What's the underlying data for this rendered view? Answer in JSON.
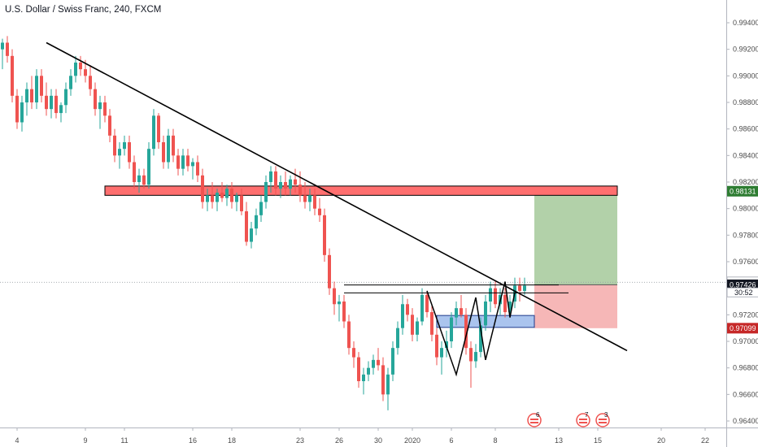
{
  "chart_data": {
    "type": "candlestick",
    "title": "U.S. Dollar / Swiss Franc, 240, FXCM",
    "ylim": [
      0.9635,
      0.9955
    ],
    "y_ticks": [
      0.964,
      0.966,
      0.968,
      0.97,
      0.972,
      0.974,
      0.976,
      0.978,
      0.98,
      0.982,
      0.984,
      0.986,
      0.988,
      0.99,
      0.992,
      0.994
    ],
    "y_tick_labels": [
      "0.96400",
      "0.96600",
      "0.96800",
      "0.97000",
      "0.97200",
      "0.97400",
      "0.97600",
      "0.97800",
      "0.98000",
      "0.98200",
      "0.98400",
      "0.98600",
      "0.98800",
      "0.99000",
      "0.99200",
      "0.99400"
    ],
    "x_ticks": [
      {
        "bar": 3,
        "label": "4"
      },
      {
        "bar": 17,
        "label": "9"
      },
      {
        "bar": 25,
        "label": "11"
      },
      {
        "bar": 39,
        "label": "16"
      },
      {
        "bar": 47,
        "label": "18"
      },
      {
        "bar": 61,
        "label": "23"
      },
      {
        "bar": 69,
        "label": "26"
      },
      {
        "bar": 77,
        "label": "30"
      },
      {
        "bar": 84,
        "label": "2020"
      },
      {
        "bar": 92,
        "label": "6"
      },
      {
        "bar": 101,
        "label": "8"
      },
      {
        "bar": 114,
        "label": "13"
      },
      {
        "bar": 122,
        "label": "15"
      },
      {
        "bar": 135,
        "label": "20"
      },
      {
        "bar": 144,
        "label": "22"
      }
    ],
    "ohlc": [
      [
        0.992,
        0.9928,
        0.9905,
        0.9925
      ],
      [
        0.9925,
        0.993,
        0.991,
        0.9915
      ],
      [
        0.9915,
        0.992,
        0.988,
        0.9885
      ],
      [
        0.9885,
        0.989,
        0.986,
        0.9865
      ],
      [
        0.9865,
        0.9885,
        0.9858,
        0.988
      ],
      [
        0.988,
        0.9895,
        0.987,
        0.989
      ],
      [
        0.989,
        0.99,
        0.9875,
        0.988
      ],
      [
        0.988,
        0.9905,
        0.9875,
        0.99
      ],
      [
        0.99,
        0.9905,
        0.988,
        0.9885
      ],
      [
        0.9885,
        0.9895,
        0.987,
        0.9875
      ],
      [
        0.9875,
        0.989,
        0.9868,
        0.9885
      ],
      [
        0.9885,
        0.989,
        0.9868,
        0.9872
      ],
      [
        0.9872,
        0.988,
        0.9865,
        0.9878
      ],
      [
        0.9878,
        0.9895,
        0.9872,
        0.989
      ],
      [
        0.989,
        0.9905,
        0.9885,
        0.99
      ],
      [
        0.99,
        0.9915,
        0.9895,
        0.991
      ],
      [
        0.991,
        0.9915,
        0.99,
        0.9905
      ],
      [
        0.9905,
        0.9912,
        0.9895,
        0.99
      ],
      [
        0.99,
        0.9908,
        0.9885,
        0.989
      ],
      [
        0.989,
        0.9895,
        0.987,
        0.9875
      ],
      [
        0.9875,
        0.9885,
        0.986,
        0.988
      ],
      [
        0.988,
        0.9885,
        0.9865,
        0.987
      ],
      [
        0.987,
        0.9875,
        0.985,
        0.9855
      ],
      [
        0.9855,
        0.986,
        0.9835,
        0.984
      ],
      [
        0.984,
        0.985,
        0.983,
        0.9845
      ],
      [
        0.9845,
        0.9855,
        0.984,
        0.985
      ],
      [
        0.985,
        0.9855,
        0.983,
        0.9835
      ],
      [
        0.9835,
        0.984,
        0.9815,
        0.982
      ],
      [
        0.982,
        0.983,
        0.9812,
        0.9825
      ],
      [
        0.9825,
        0.983,
        0.9815,
        0.9818
      ],
      [
        0.9818,
        0.985,
        0.9815,
        0.9845
      ],
      [
        0.9845,
        0.9875,
        0.984,
        0.987
      ],
      [
        0.987,
        0.9872,
        0.9845,
        0.985
      ],
      [
        0.985,
        0.9855,
        0.983,
        0.9835
      ],
      [
        0.9835,
        0.986,
        0.983,
        0.9855
      ],
      [
        0.9855,
        0.986,
        0.9835,
        0.984
      ],
      [
        0.984,
        0.9845,
        0.9825,
        0.983
      ],
      [
        0.983,
        0.9845,
        0.9825,
        0.984
      ],
      [
        0.984,
        0.9845,
        0.9828,
        0.9832
      ],
      [
        0.9832,
        0.9838,
        0.9822,
        0.9835
      ],
      [
        0.9835,
        0.984,
        0.982,
        0.9825
      ],
      [
        0.9825,
        0.983,
        0.98,
        0.9805
      ],
      [
        0.9805,
        0.9815,
        0.9798,
        0.981
      ],
      [
        0.981,
        0.982,
        0.98,
        0.9805
      ],
      [
        0.9805,
        0.9815,
        0.9798,
        0.9812
      ],
      [
        0.9812,
        0.982,
        0.9805,
        0.9808
      ],
      [
        0.9808,
        0.9818,
        0.9802,
        0.9815
      ],
      [
        0.9815,
        0.982,
        0.98,
        0.9805
      ],
      [
        0.9805,
        0.9812,
        0.9798,
        0.981
      ],
      [
        0.981,
        0.9815,
        0.9795,
        0.9798
      ],
      [
        0.9798,
        0.9805,
        0.9772,
        0.9775
      ],
      [
        0.9775,
        0.979,
        0.977,
        0.9785
      ],
      [
        0.9785,
        0.98,
        0.978,
        0.9795
      ],
      [
        0.9795,
        0.981,
        0.979,
        0.9805
      ],
      [
        0.9805,
        0.9825,
        0.98,
        0.982
      ],
      [
        0.982,
        0.9832,
        0.9812,
        0.9828
      ],
      [
        0.9828,
        0.9832,
        0.981,
        0.9815
      ],
      [
        0.9815,
        0.9825,
        0.9808,
        0.982
      ],
      [
        0.982,
        0.9828,
        0.981,
        0.9815
      ],
      [
        0.9815,
        0.9825,
        0.981,
        0.9822
      ],
      [
        0.9822,
        0.983,
        0.9812,
        0.9818
      ],
      [
        0.9818,
        0.9828,
        0.9805,
        0.981
      ],
      [
        0.981,
        0.982,
        0.98,
        0.9805
      ],
      [
        0.9805,
        0.9815,
        0.9798,
        0.981
      ],
      [
        0.981,
        0.9815,
        0.9795,
        0.98
      ],
      [
        0.98,
        0.9808,
        0.979,
        0.9795
      ],
      [
        0.9795,
        0.98,
        0.976,
        0.9765
      ],
      [
        0.9765,
        0.977,
        0.9735,
        0.974
      ],
      [
        0.974,
        0.9745,
        0.972,
        0.9728
      ],
      [
        0.9728,
        0.9735,
        0.9715,
        0.973
      ],
      [
        0.973,
        0.9735,
        0.971,
        0.9715
      ],
      [
        0.9715,
        0.972,
        0.969,
        0.9695
      ],
      [
        0.9695,
        0.97,
        0.968,
        0.9688
      ],
      [
        0.9688,
        0.9692,
        0.9665,
        0.967
      ],
      [
        0.967,
        0.968,
        0.966,
        0.9675
      ],
      [
        0.9675,
        0.9685,
        0.967,
        0.968
      ],
      [
        0.968,
        0.969,
        0.9675,
        0.9686
      ],
      [
        0.9686,
        0.9695,
        0.9678,
        0.9682
      ],
      [
        0.9682,
        0.9688,
        0.9655,
        0.966
      ],
      [
        0.966,
        0.968,
        0.9648,
        0.9675
      ],
      [
        0.9675,
        0.97,
        0.967,
        0.9695
      ],
      [
        0.9695,
        0.9715,
        0.969,
        0.971
      ],
      [
        0.971,
        0.9735,
        0.9705,
        0.9728
      ],
      [
        0.9728,
        0.9732,
        0.9715,
        0.972
      ],
      [
        0.972,
        0.9725,
        0.97,
        0.9705
      ],
      [
        0.9705,
        0.9718,
        0.97,
        0.9715
      ],
      [
        0.9715,
        0.974,
        0.9712,
        0.9735
      ],
      [
        0.9735,
        0.9738,
        0.9718,
        0.9722
      ],
      [
        0.9722,
        0.9728,
        0.97,
        0.9705
      ],
      [
        0.9705,
        0.971,
        0.9682,
        0.9688
      ],
      [
        0.9688,
        0.97,
        0.9675,
        0.9695
      ],
      [
        0.9695,
        0.9708,
        0.9688,
        0.97
      ],
      [
        0.97,
        0.9722,
        0.9695,
        0.9718
      ],
      [
        0.9718,
        0.973,
        0.9712,
        0.9725
      ],
      [
        0.9725,
        0.9735,
        0.9718,
        0.972
      ],
      [
        0.972,
        0.9725,
        0.969,
        0.9695
      ],
      [
        0.9695,
        0.97,
        0.9665,
        0.9685
      ],
      [
        0.9685,
        0.9698,
        0.968,
        0.9692
      ],
      [
        0.9692,
        0.9718,
        0.9688,
        0.9712
      ],
      [
        0.9712,
        0.9735,
        0.9708,
        0.973
      ],
      [
        0.973,
        0.9745,
        0.9722,
        0.974
      ],
      [
        0.974,
        0.9745,
        0.9725,
        0.9728
      ],
      [
        0.9728,
        0.974,
        0.972,
        0.9735
      ],
      [
        0.9735,
        0.974,
        0.9718,
        0.9722
      ],
      [
        0.9722,
        0.9735,
        0.9718,
        0.973
      ],
      [
        0.973,
        0.9748,
        0.9725,
        0.9742
      ],
      [
        0.9742,
        0.9748,
        0.973,
        0.9738
      ],
      [
        0.9738,
        0.9748,
        0.9735,
        0.9742
      ]
    ],
    "trendline": {
      "from": {
        "bar": 9,
        "price": 0.9925
      },
      "to": {
        "bar": 128,
        "price": 0.9693
      }
    },
    "resistance_zone": {
      "from_bar": 21,
      "to_bar": 126,
      "top": 0.9817,
      "bottom": 0.981
    },
    "support_zone": {
      "from_bar": 89,
      "to_bar": 109,
      "top": 0.97195,
      "bottom": 0.97105
    },
    "neckline_lines": [
      {
        "from_bar": 70,
        "to_bar": 114,
        "price": 0.97425
      },
      {
        "from_bar": 70,
        "to_bar": 116,
        "price": 0.97365
      }
    ],
    "pattern_path": [
      {
        "bar": 87,
        "price": 0.9738
      },
      {
        "bar": 93,
        "price": 0.9675
      },
      {
        "bar": 97,
        "price": 0.9733
      },
      {
        "bar": 99,
        "price": 0.9686
      },
      {
        "bar": 103,
        "price": 0.9745
      },
      {
        "bar": 104,
        "price": 0.9718
      },
      {
        "bar": 105,
        "price": 0.9737
      }
    ],
    "position": {
      "start_bar": 109,
      "end_bar": 126,
      "entry": 0.97426,
      "target": 0.98131,
      "stop": 0.97099
    },
    "last_price_line": 0.97445,
    "price_tags": [
      {
        "price": 0.98131,
        "label": "0.98131",
        "color": "#2e7d32"
      },
      {
        "price": 0.97445,
        "label": "0.97445",
        "color": "#ffffff"
      },
      {
        "price": 0.97426,
        "label": "0.97426",
        "color": "#131722"
      },
      {
        "price": 0.97099,
        "label": "0.97099",
        "color": "#c62828"
      }
    ],
    "countdown": "30:52",
    "events": [
      {
        "bar": 109,
        "label": "6"
      },
      {
        "bar": 119,
        "label": "7"
      },
      {
        "bar": 123,
        "label": "3"
      }
    ],
    "colors": {
      "up": "#26a69a",
      "down": "#ef5350",
      "trendline": "#000000",
      "zone_red": "#ff6f6f",
      "zone_blue": "#aac4ee",
      "profit": "#a5c99a",
      "loss": "#f4aaaa"
    }
  }
}
